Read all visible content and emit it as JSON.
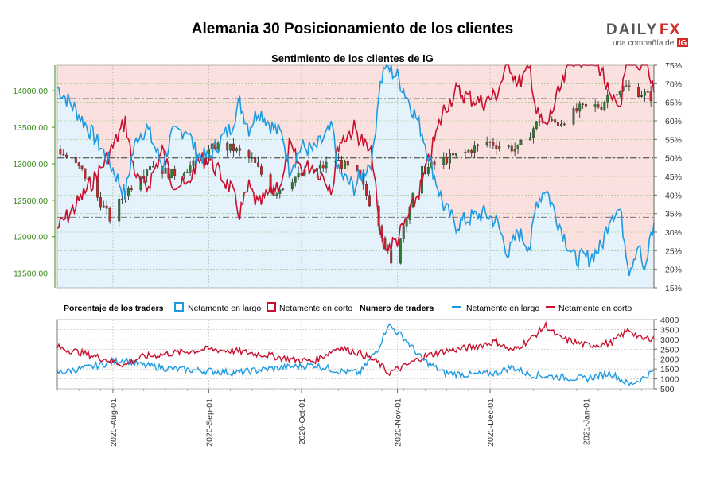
{
  "header": {
    "title": "Alemania 30 Posicionamiento de los clientes",
    "subtitle": "Sentimiento de los clientes de IG"
  },
  "logo": {
    "brand_left": "DAILY",
    "brand_right": "FX",
    "tagline": "una compañía de",
    "tagline_brand": "IG"
  },
  "colors": {
    "bullish": "#2e7d32",
    "bearish": "#c62828",
    "long_line": "#1e9be0",
    "short_line": "#c8102e",
    "long_fill": "#e3f2fb",
    "short_fill": "#fbe0e0",
    "left_axis": "#3a8a1a"
  },
  "chart_data": [
    {
      "type": "candlestick+area",
      "title": "Sentimiento de los clientes de IG",
      "xlim": [
        "2020-07-14",
        "2021-01-23"
      ],
      "left_axis": {
        "ylim": [
          11300,
          14350
        ],
        "ticks": [
          11500,
          12000,
          12500,
          13000,
          13500,
          14000
        ],
        "tick_labels": [
          "11500.00",
          "12000.00",
          "12500.00",
          "13000.00",
          "13500.00",
          "14000.00"
        ]
      },
      "right_axis": {
        "ylim": [
          15,
          75
        ],
        "ticks": [
          15,
          20,
          25,
          30,
          35,
          40,
          45,
          50,
          55,
          60,
          65,
          70,
          75
        ],
        "tick_labels": [
          "15%",
          "20%",
          "25%",
          "30%",
          "35%",
          "40%",
          "45%",
          "50%",
          "55%",
          "60%",
          "65%",
          "70%",
          "75%"
        ]
      },
      "reference_lines_pct": [
        34,
        50,
        66
      ],
      "series": [
        {
          "name": "Netamente en largo",
          "kind": "pct_long",
          "anchors": [
            [
              "2020-07-14",
              69
            ],
            [
              "2020-07-19",
              64
            ],
            [
              "2020-07-24",
              58
            ],
            [
              "2020-07-28",
              53
            ],
            [
              "2020-08-01",
              47
            ],
            [
              "2020-08-05",
              40
            ],
            [
              "2020-08-07",
              50
            ],
            [
              "2020-08-09",
              56
            ],
            [
              "2020-08-12",
              58
            ],
            [
              "2020-08-17",
              48
            ],
            [
              "2020-08-20",
              56
            ],
            [
              "2020-08-25",
              58
            ],
            [
              "2020-08-28",
              51
            ],
            [
              "2020-09-01",
              50
            ],
            [
              "2020-09-05",
              55
            ],
            [
              "2020-09-08",
              58
            ],
            [
              "2020-09-11",
              65
            ],
            [
              "2020-09-14",
              58
            ],
            [
              "2020-09-17",
              63
            ],
            [
              "2020-09-22",
              58
            ],
            [
              "2020-09-25",
              56
            ],
            [
              "2020-09-27",
              47
            ],
            [
              "2020-10-01",
              53
            ],
            [
              "2020-10-05",
              52
            ],
            [
              "2020-10-08",
              55
            ],
            [
              "2020-10-11",
              58
            ],
            [
              "2020-10-13",
              46
            ],
            [
              "2020-10-18",
              42
            ],
            [
              "2020-10-24",
              50
            ],
            [
              "2020-10-26",
              68
            ],
            [
              "2020-10-28",
              75
            ],
            [
              "2020-11-01",
              72
            ],
            [
              "2020-11-05",
              65
            ],
            [
              "2020-11-09",
              57
            ],
            [
              "2020-11-12",
              48
            ],
            [
              "2020-11-16",
              37
            ],
            [
              "2020-11-20",
              32
            ],
            [
              "2020-11-25",
              34
            ],
            [
              "2020-11-29",
              35
            ],
            [
              "2020-12-03",
              33
            ],
            [
              "2020-12-07",
              24
            ],
            [
              "2020-12-10",
              30
            ],
            [
              "2020-12-14",
              26
            ],
            [
              "2020-12-16",
              38
            ],
            [
              "2020-12-19",
              42
            ],
            [
              "2020-12-23",
              33
            ],
            [
              "2020-12-28",
              23
            ],
            [
              "2021-01-02",
              23
            ],
            [
              "2021-01-06",
              26
            ],
            [
              "2021-01-09",
              35
            ],
            [
              "2021-01-12",
              36
            ],
            [
              "2021-01-15",
              20
            ],
            [
              "2021-01-18",
              27
            ],
            [
              "2021-01-20",
              18
            ],
            [
              "2021-01-22",
              30
            ],
            [
              "2021-01-23",
              31
            ]
          ]
        },
        {
          "name": "Netamente en corto",
          "kind": "pct_short",
          "note": "complement of Netamente en largo"
        }
      ],
      "price_path": [
        [
          "2020-07-14",
          13200
        ],
        [
          "2020-07-22",
          12900
        ],
        [
          "2020-07-31",
          12250
        ],
        [
          "2020-08-05",
          12600
        ],
        [
          "2020-08-13",
          13000
        ],
        [
          "2020-08-20",
          12850
        ],
        [
          "2020-08-28",
          13000
        ],
        [
          "2020-09-03",
          13250
        ],
        [
          "2020-09-09",
          13200
        ],
        [
          "2020-09-15",
          13050
        ],
        [
          "2020-09-22",
          12600
        ],
        [
          "2020-09-28",
          12800
        ],
        [
          "2020-10-05",
          12900
        ],
        [
          "2020-10-12",
          13050
        ],
        [
          "2020-10-19",
          12850
        ],
        [
          "2020-10-26",
          12200
        ],
        [
          "2020-10-30",
          11600
        ],
        [
          "2020-11-04",
          12300
        ],
        [
          "2020-11-09",
          12900
        ],
        [
          "2020-11-16",
          13050
        ],
        [
          "2020-11-23",
          13150
        ],
        [
          "2020-11-30",
          13300
        ],
        [
          "2020-12-04",
          13250
        ],
        [
          "2020-12-10",
          13200
        ],
        [
          "2020-12-17",
          13600
        ],
        [
          "2020-12-23",
          13550
        ],
        [
          "2020-12-30",
          13750
        ],
        [
          "2021-01-06",
          13800
        ],
        [
          "2021-01-09",
          14000
        ],
        [
          "2021-01-14",
          14050
        ],
        [
          "2021-01-20",
          13950
        ],
        [
          "2021-01-23",
          13900
        ]
      ]
    },
    {
      "type": "line",
      "title": "Numero de traders",
      "ylim": [
        500,
        4000
      ],
      "yticks": [
        500,
        1000,
        1500,
        2000,
        2500,
        3000,
        3500,
        4000
      ],
      "ytick_labels": [
        "500",
        "1000",
        "1500",
        "2000",
        "2500",
        "3000",
        "3500",
        "4000"
      ],
      "xticks": [
        "2020-08-01",
        "2020-09-01",
        "2020-10-01",
        "2020-11-01",
        "2020-12-01",
        "2021-01-01"
      ],
      "xtick_labels": [
        "2020-Aug-01",
        "2020-Sep-01",
        "2020-Oct-01",
        "2020-Nov-01",
        "2020-Dec-01",
        "2021-Jan-01"
      ],
      "series": [
        {
          "name": "Netamente en largo",
          "anchors": [
            [
              "2020-07-14",
              1300
            ],
            [
              "2020-07-25",
              1600
            ],
            [
              "2020-08-05",
              2000
            ],
            [
              "2020-08-10",
              1700
            ],
            [
              "2020-08-20",
              1500
            ],
            [
              "2020-09-01",
              1400
            ],
            [
              "2020-09-10",
              1300
            ],
            [
              "2020-09-20",
              1500
            ],
            [
              "2020-09-27",
              1600
            ],
            [
              "2020-10-05",
              1700
            ],
            [
              "2020-10-13",
              1400
            ],
            [
              "2020-10-20",
              1300
            ],
            [
              "2020-10-26",
              2600
            ],
            [
              "2020-10-29",
              3750
            ],
            [
              "2020-11-03",
              3100
            ],
            [
              "2020-11-09",
              2000
            ],
            [
              "2020-11-16",
              1300
            ],
            [
              "2020-11-25",
              1200
            ],
            [
              "2020-12-03",
              1300
            ],
            [
              "2020-12-08",
              1600
            ],
            [
              "2020-12-14",
              1200
            ],
            [
              "2020-12-23",
              1100
            ],
            [
              "2021-01-01",
              1000
            ],
            [
              "2021-01-09",
              1300
            ],
            [
              "2021-01-15",
              700
            ],
            [
              "2021-01-19",
              1000
            ],
            [
              "2021-01-23",
              1400
            ]
          ]
        },
        {
          "name": "Netamente en corto",
          "anchors": [
            [
              "2020-07-14",
              2600
            ],
            [
              "2020-07-25",
              2200
            ],
            [
              "2020-08-05",
              1700
            ],
            [
              "2020-08-10",
              2100
            ],
            [
              "2020-08-20",
              2300
            ],
            [
              "2020-09-01",
              2500
            ],
            [
              "2020-09-10",
              2400
            ],
            [
              "2020-09-20",
              2200
            ],
            [
              "2020-09-27",
              2000
            ],
            [
              "2020-10-05",
              1900
            ],
            [
              "2020-10-13",
              2600
            ],
            [
              "2020-10-20",
              2300
            ],
            [
              "2020-10-26",
              1800
            ],
            [
              "2020-10-29",
              1300
            ],
            [
              "2020-11-03",
              1600
            ],
            [
              "2020-11-09",
              2100
            ],
            [
              "2020-11-16",
              2400
            ],
            [
              "2020-11-25",
              2600
            ],
            [
              "2020-12-03",
              2900
            ],
            [
              "2020-12-08",
              2400
            ],
            [
              "2020-12-14",
              3000
            ],
            [
              "2020-12-19",
              3700
            ],
            [
              "2020-12-23",
              3100
            ],
            [
              "2021-01-01",
              2700
            ],
            [
              "2021-01-09",
              2800
            ],
            [
              "2021-01-15",
              3500
            ],
            [
              "2021-01-19",
              3000
            ],
            [
              "2021-01-23",
              3100
            ]
          ]
        }
      ]
    }
  ],
  "legend": {
    "left_title": "Porcentaje de los traders",
    "long_label": "Netamente en largo",
    "short_label": "Netamente en corto",
    "right_title": "Numero de traders",
    "long_line_label": "Netamente en largo",
    "short_line_label": "Netamente en corto"
  }
}
